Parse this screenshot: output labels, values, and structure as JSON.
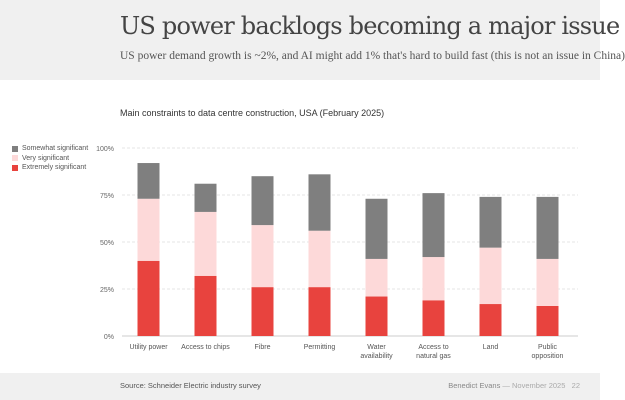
{
  "header": {
    "title": "US power backlogs becoming a major issue",
    "subtitle": "US power demand growth is ~2%, and AI might add 1% that's hard to build fast (this is not an issue in China)"
  },
  "footer": {
    "source": "Source: Schneider Electric industry survey",
    "author": "Benedict Evans",
    "separator": "—",
    "date": "November 2025",
    "page": "22"
  },
  "chart_data": {
    "type": "bar",
    "stacked": true,
    "title": "Main constraints to data centre construction, USA (February 2025)",
    "xlabel": "",
    "ylabel": "",
    "ylim": [
      0,
      100
    ],
    "yticks": [
      "0%",
      "25%",
      "50%",
      "75%",
      "100%"
    ],
    "ytick_values": [
      0,
      25,
      50,
      75,
      100
    ],
    "grid": true,
    "legend_placement": "left",
    "categories": [
      [
        "Utility power"
      ],
      [
        "Access to chips"
      ],
      [
        "Fibre"
      ],
      [
        "Permitting"
      ],
      [
        "Water",
        "availability"
      ],
      [
        "Access to",
        "natural gas"
      ],
      [
        "Land"
      ],
      [
        "Public",
        "opposition"
      ]
    ],
    "series": [
      {
        "name": "Extremely significant",
        "color": "#e8433e",
        "values": [
          40,
          32,
          26,
          26,
          21,
          19,
          17,
          16
        ]
      },
      {
        "name": "Very significant",
        "color": "#fdd9d9",
        "values": [
          33,
          34,
          33,
          30,
          20,
          23,
          30,
          25
        ]
      },
      {
        "name": "Somewhat significant",
        "color": "#7f7f7f",
        "values": [
          19,
          15,
          26,
          30,
          32,
          34,
          27,
          33
        ]
      }
    ]
  }
}
